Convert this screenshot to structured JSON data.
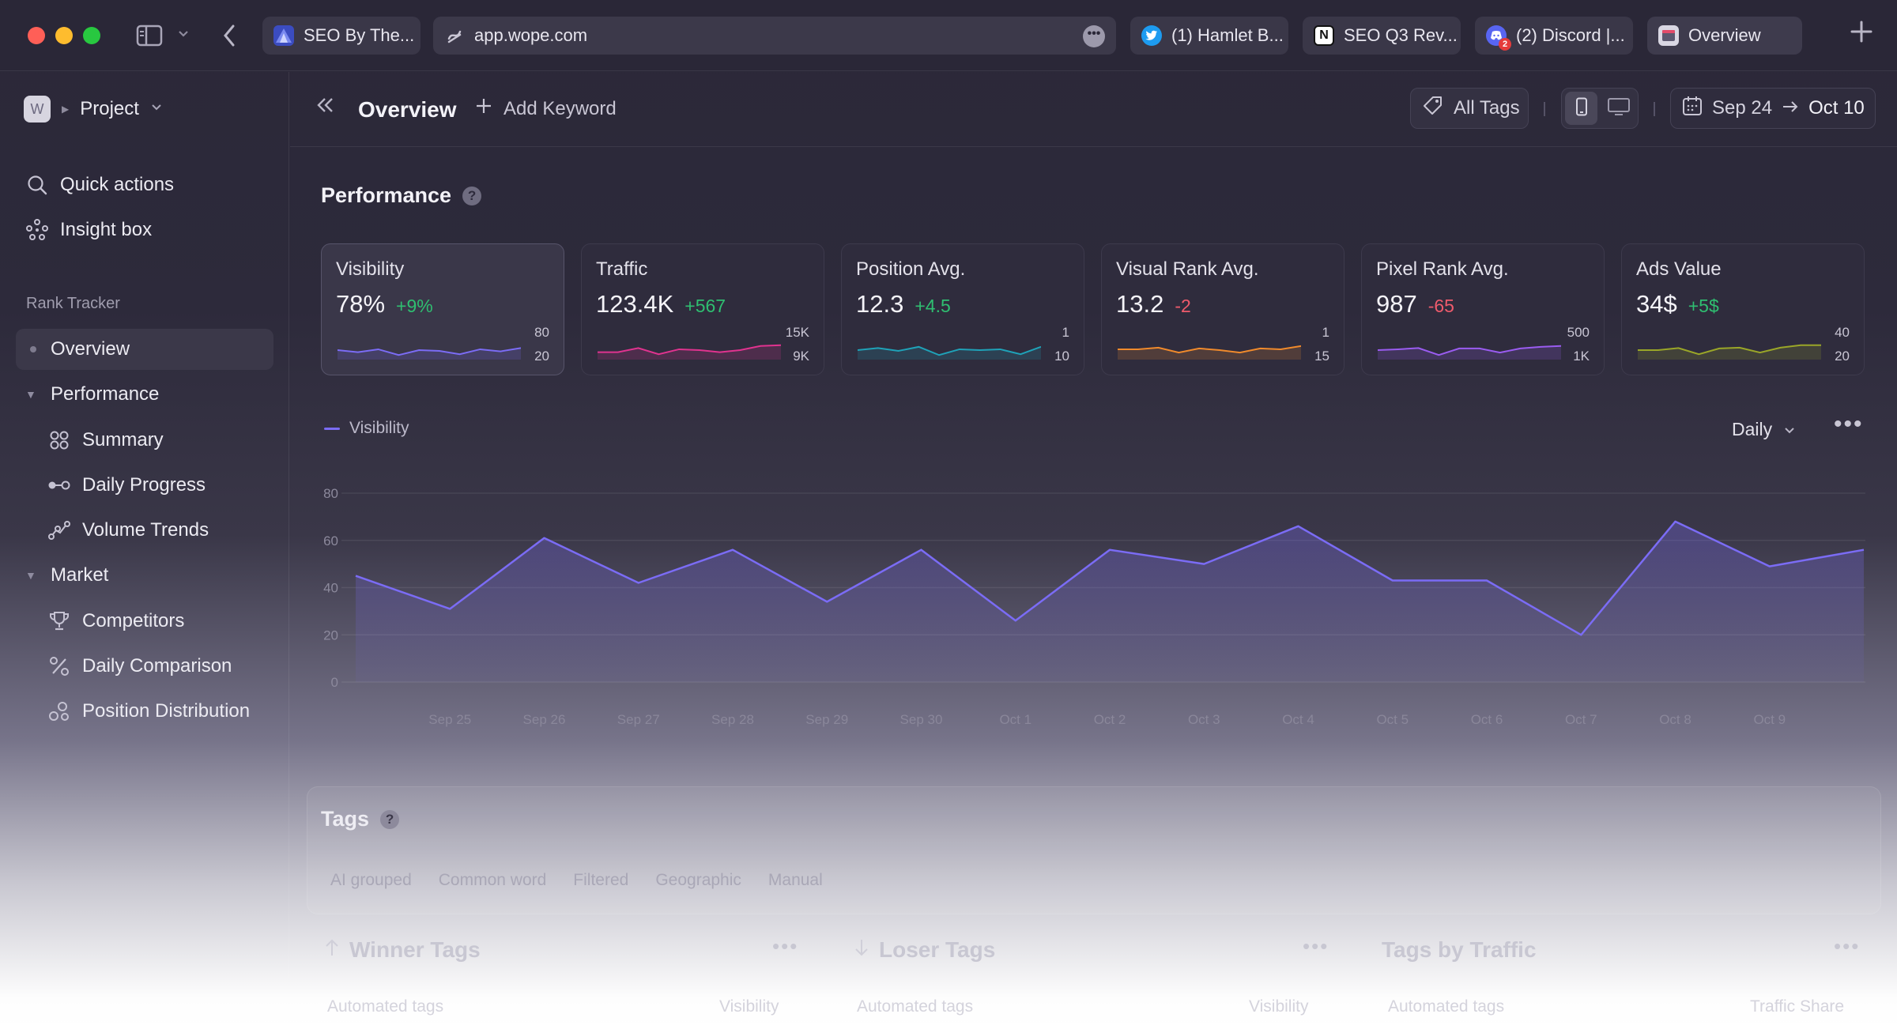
{
  "browser": {
    "tabs": [
      {
        "label": "SEO By The...",
        "favicon": "SEO By The favicon"
      },
      {
        "label": "(1) Hamlet B...",
        "favicon": "twitter-icon"
      },
      {
        "label": "SEO Q3 Rev...",
        "favicon": "notion-icon"
      },
      {
        "label": "(2) Discord |...",
        "favicon": "discord-icon",
        "badge": "2"
      },
      {
        "label": "Overview",
        "favicon": "wope-icon"
      }
    ],
    "url": "app.wope.com",
    "url_more": "•••"
  },
  "sidebar": {
    "workspace_initial": "W",
    "project_label": "Project",
    "quick_actions": "Quick actions",
    "insight_box": "Insight box",
    "section_rank_tracker": "Rank Tracker",
    "items": {
      "overview": "Overview",
      "performance": "Performance",
      "summary": "Summary",
      "daily_progress": "Daily Progress",
      "volume_trends": "Volume Trends",
      "market": "Market",
      "competitors": "Competitors",
      "daily_comparison": "Daily Comparison",
      "position_distribution": "Position Distribution"
    }
  },
  "header": {
    "title": "Overview",
    "add_keyword": "Add Keyword",
    "all_tags": "All Tags",
    "date_from": "Sep 24",
    "date_to": "Oct 10"
  },
  "performance": {
    "title": "Performance",
    "help": "?",
    "cards": [
      {
        "label": "Visibility",
        "value": "78%",
        "delta": "+9%",
        "trend": "pos",
        "axis_top": "80",
        "axis_bottom": "20",
        "color": "#7b6cf5",
        "spark": [
          50,
          45,
          52,
          38,
          50,
          48,
          40,
          52,
          47,
          55
        ]
      },
      {
        "label": "Traffic",
        "value": "123.4K",
        "delta": "+567",
        "trend": "pos",
        "axis_top": "15K",
        "axis_bottom": "9K",
        "color": "#e0338f",
        "spark": [
          45,
          45,
          55,
          40,
          52,
          50,
          45,
          50,
          60,
          62
        ]
      },
      {
        "label": "Position Avg.",
        "value": "12.3",
        "delta": "+4.5",
        "trend": "pos",
        "axis_top": "1",
        "axis_bottom": "10",
        "color": "#1fa2b8",
        "spark": [
          50,
          55,
          48,
          58,
          38,
          52,
          50,
          52,
          40,
          58
        ]
      },
      {
        "label": "Visual Rank Avg.",
        "value": "13.2",
        "delta": "-2",
        "trend": "neg",
        "axis_top": "1",
        "axis_bottom": "15",
        "color": "#f08a2c",
        "spark": [
          52,
          52,
          56,
          44,
          54,
          50,
          44,
          54,
          52,
          60
        ]
      },
      {
        "label": "Pixel Rank Avg.",
        "value": "987",
        "delta": "-65",
        "trend": "neg",
        "axis_top": "500",
        "axis_bottom": "1K",
        "color": "#9a5cf0",
        "spark": [
          50,
          52,
          55,
          38,
          54,
          54,
          44,
          54,
          58,
          60
        ]
      },
      {
        "label": "Ads Value",
        "value": "34$",
        "delta": "+5$",
        "trend": "pos",
        "axis_top": "40",
        "axis_bottom": "20",
        "color": "#9aa628",
        "spark": [
          50,
          50,
          55,
          40,
          54,
          56,
          44,
          56,
          62,
          62
        ]
      }
    ]
  },
  "chart": {
    "legend": "Visibility",
    "interval": "Daily",
    "more": "•••"
  },
  "chart_data": {
    "type": "area",
    "series": [
      {
        "name": "Visibility",
        "values": [
          45,
          31,
          61,
          42,
          56,
          34,
          56,
          26,
          56,
          50,
          66,
          43,
          43,
          20,
          68,
          49,
          56
        ]
      }
    ],
    "x": [
      "Sep 24",
      "Sep 25",
      "Sep 26",
      "Sep 27",
      "Sep 28",
      "Sep 29",
      "Sep 30",
      "Oct 1",
      "Oct 2",
      "Oct 3",
      "Oct 4",
      "Oct 5",
      "Oct 6",
      "Oct 7",
      "Oct 8",
      "Oct 9",
      "Oct 10"
    ],
    "x_tick_labels": [
      "Sep 25",
      "Sep 26",
      "Sep 27",
      "Sep 28",
      "Sep 29",
      "Sep 30",
      "Oct 1",
      "Oct 2",
      "Oct 3",
      "Oct 4",
      "Oct 5",
      "Oct 6",
      "Oct 7",
      "Oct 8",
      "Oct 9"
    ],
    "y_ticks": [
      0,
      20,
      40,
      60,
      80
    ],
    "ylim": [
      0,
      80
    ],
    "grid": true,
    "legend_position": "top-left",
    "color": "#7b6cf5"
  },
  "tags": {
    "title": "Tags",
    "help": "?",
    "chips": [
      "AI grouped",
      "Common word",
      "Filtered",
      "Geographic",
      "Manual"
    ],
    "winner_title": "Winner Tags",
    "loser_title": "Loser Tags",
    "traffic_title": "Tags by Traffic",
    "more": "•••",
    "col_grouped_tags": "Automated tags",
    "col_visibility": "Visibility",
    "col_traffic_share": "Traffic Share"
  }
}
